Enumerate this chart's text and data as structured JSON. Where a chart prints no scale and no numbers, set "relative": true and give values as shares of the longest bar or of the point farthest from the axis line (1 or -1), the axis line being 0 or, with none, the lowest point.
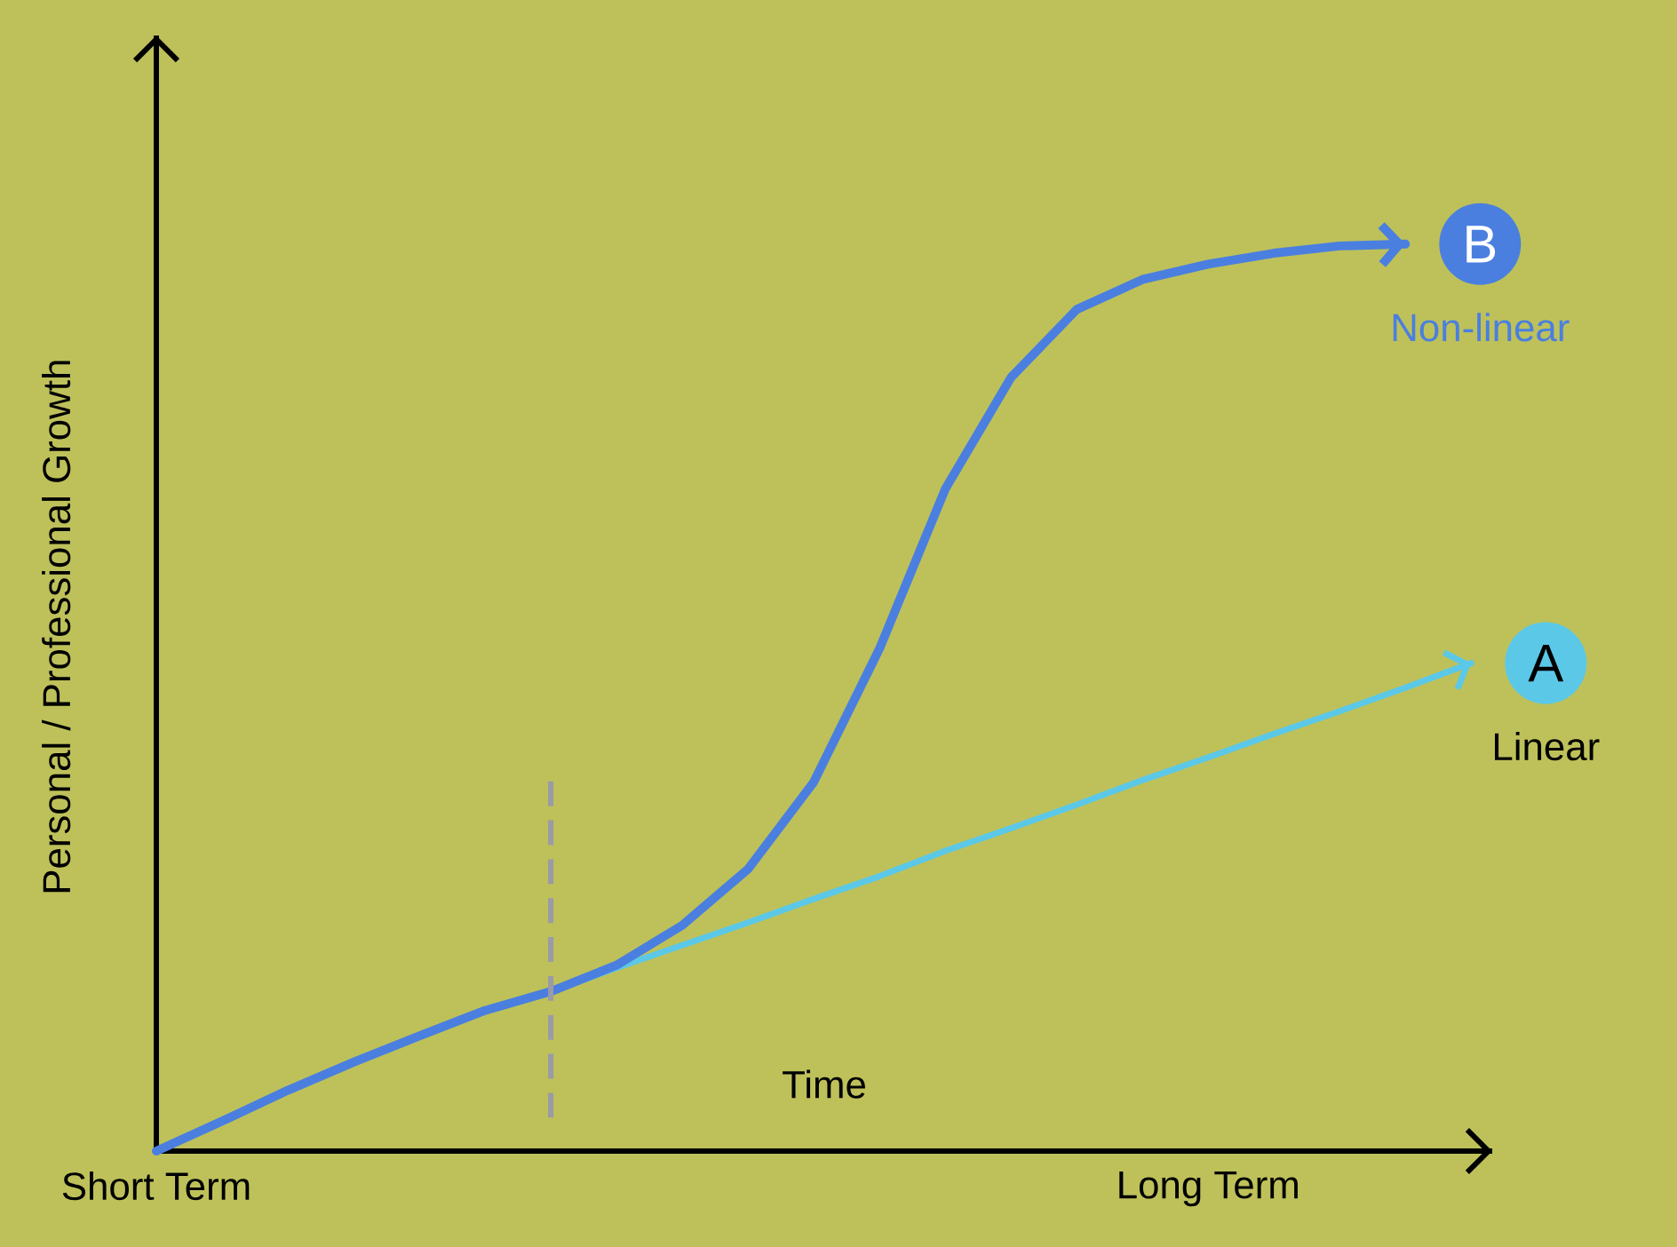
{
  "chart_data": {
    "type": "line",
    "relative": true,
    "xlabel": "Time",
    "ylabel": "Personal / Professional Growth",
    "categories": [
      "Short Term",
      null,
      null,
      null,
      null,
      null,
      null,
      null,
      null,
      null,
      null,
      null,
      null,
      null,
      null,
      null,
      "Long Term",
      null,
      null,
      null,
      null
    ],
    "series": [
      {
        "name": "Non-linear",
        "color": "#4a7fe0",
        "values": [
          0,
          0.033,
          0.067,
          0.098,
          0.127,
          0.155,
          0.176,
          0.205,
          0.249,
          0.311,
          0.407,
          0.554,
          0.73,
          0.853,
          0.928,
          0.961,
          0.978,
          0.99,
          0.998,
          1,
          null
        ]
      },
      {
        "name": "Linear",
        "color": "#5cc8e8",
        "values": [
          null,
          null,
          null,
          null,
          null,
          null,
          0.176,
          0.202,
          0.227,
          0.252,
          0.278,
          0.303,
          0.331,
          0.356,
          0.382,
          0.409,
          0.434,
          0.46,
          0.485,
          0.511,
          0.538
        ]
      }
    ],
    "annotations": [
      "B",
      "A"
    ],
    "legend": "right",
    "marker": "none",
    "line_style": "solid"
  }
}
